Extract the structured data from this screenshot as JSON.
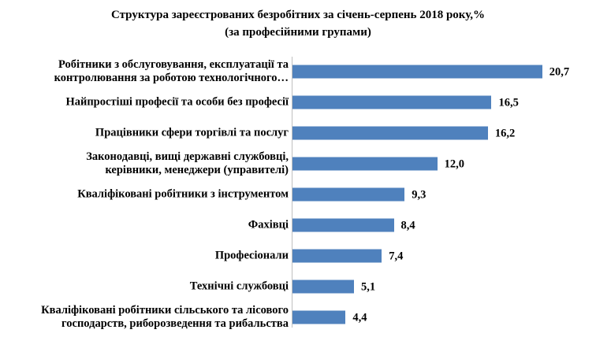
{
  "chart_data": {
    "type": "bar",
    "orientation": "horizontal",
    "title": "Структура зареєстрованих безробітних за січень-серпень 2018 року,%",
    "subtitle": "(за професійними групами)",
    "categories": [
      [
        "Робітники з обслуговування, експлуатації та",
        "контролювання за роботою технологічного…"
      ],
      [
        "Найпростіші професії та особи без професії"
      ],
      [
        "Працівники сфери торгівлі та послуг"
      ],
      [
        "Законодавці, вищі державні службовці,",
        "керівники, менеджери (управителі)"
      ],
      [
        "Кваліфіковані робітники з інструментом"
      ],
      [
        "Фахівці"
      ],
      [
        "Професіонали"
      ],
      [
        "Технічні службовці"
      ],
      [
        "Кваліфіковані робітники сільського та лісового",
        "господарств, риборозведення та рибальства"
      ]
    ],
    "values": [
      20.7,
      16.5,
      16.2,
      12.0,
      9.3,
      8.4,
      7.4,
      5.1,
      4.4
    ],
    "value_labels": [
      "20,7",
      "16,5",
      "16,2",
      "12,0",
      "9,3",
      "8,4",
      "7,4",
      "5,1",
      "4,4"
    ],
    "bar_color": "#4F81BD",
    "grid": false,
    "legend": "none"
  }
}
